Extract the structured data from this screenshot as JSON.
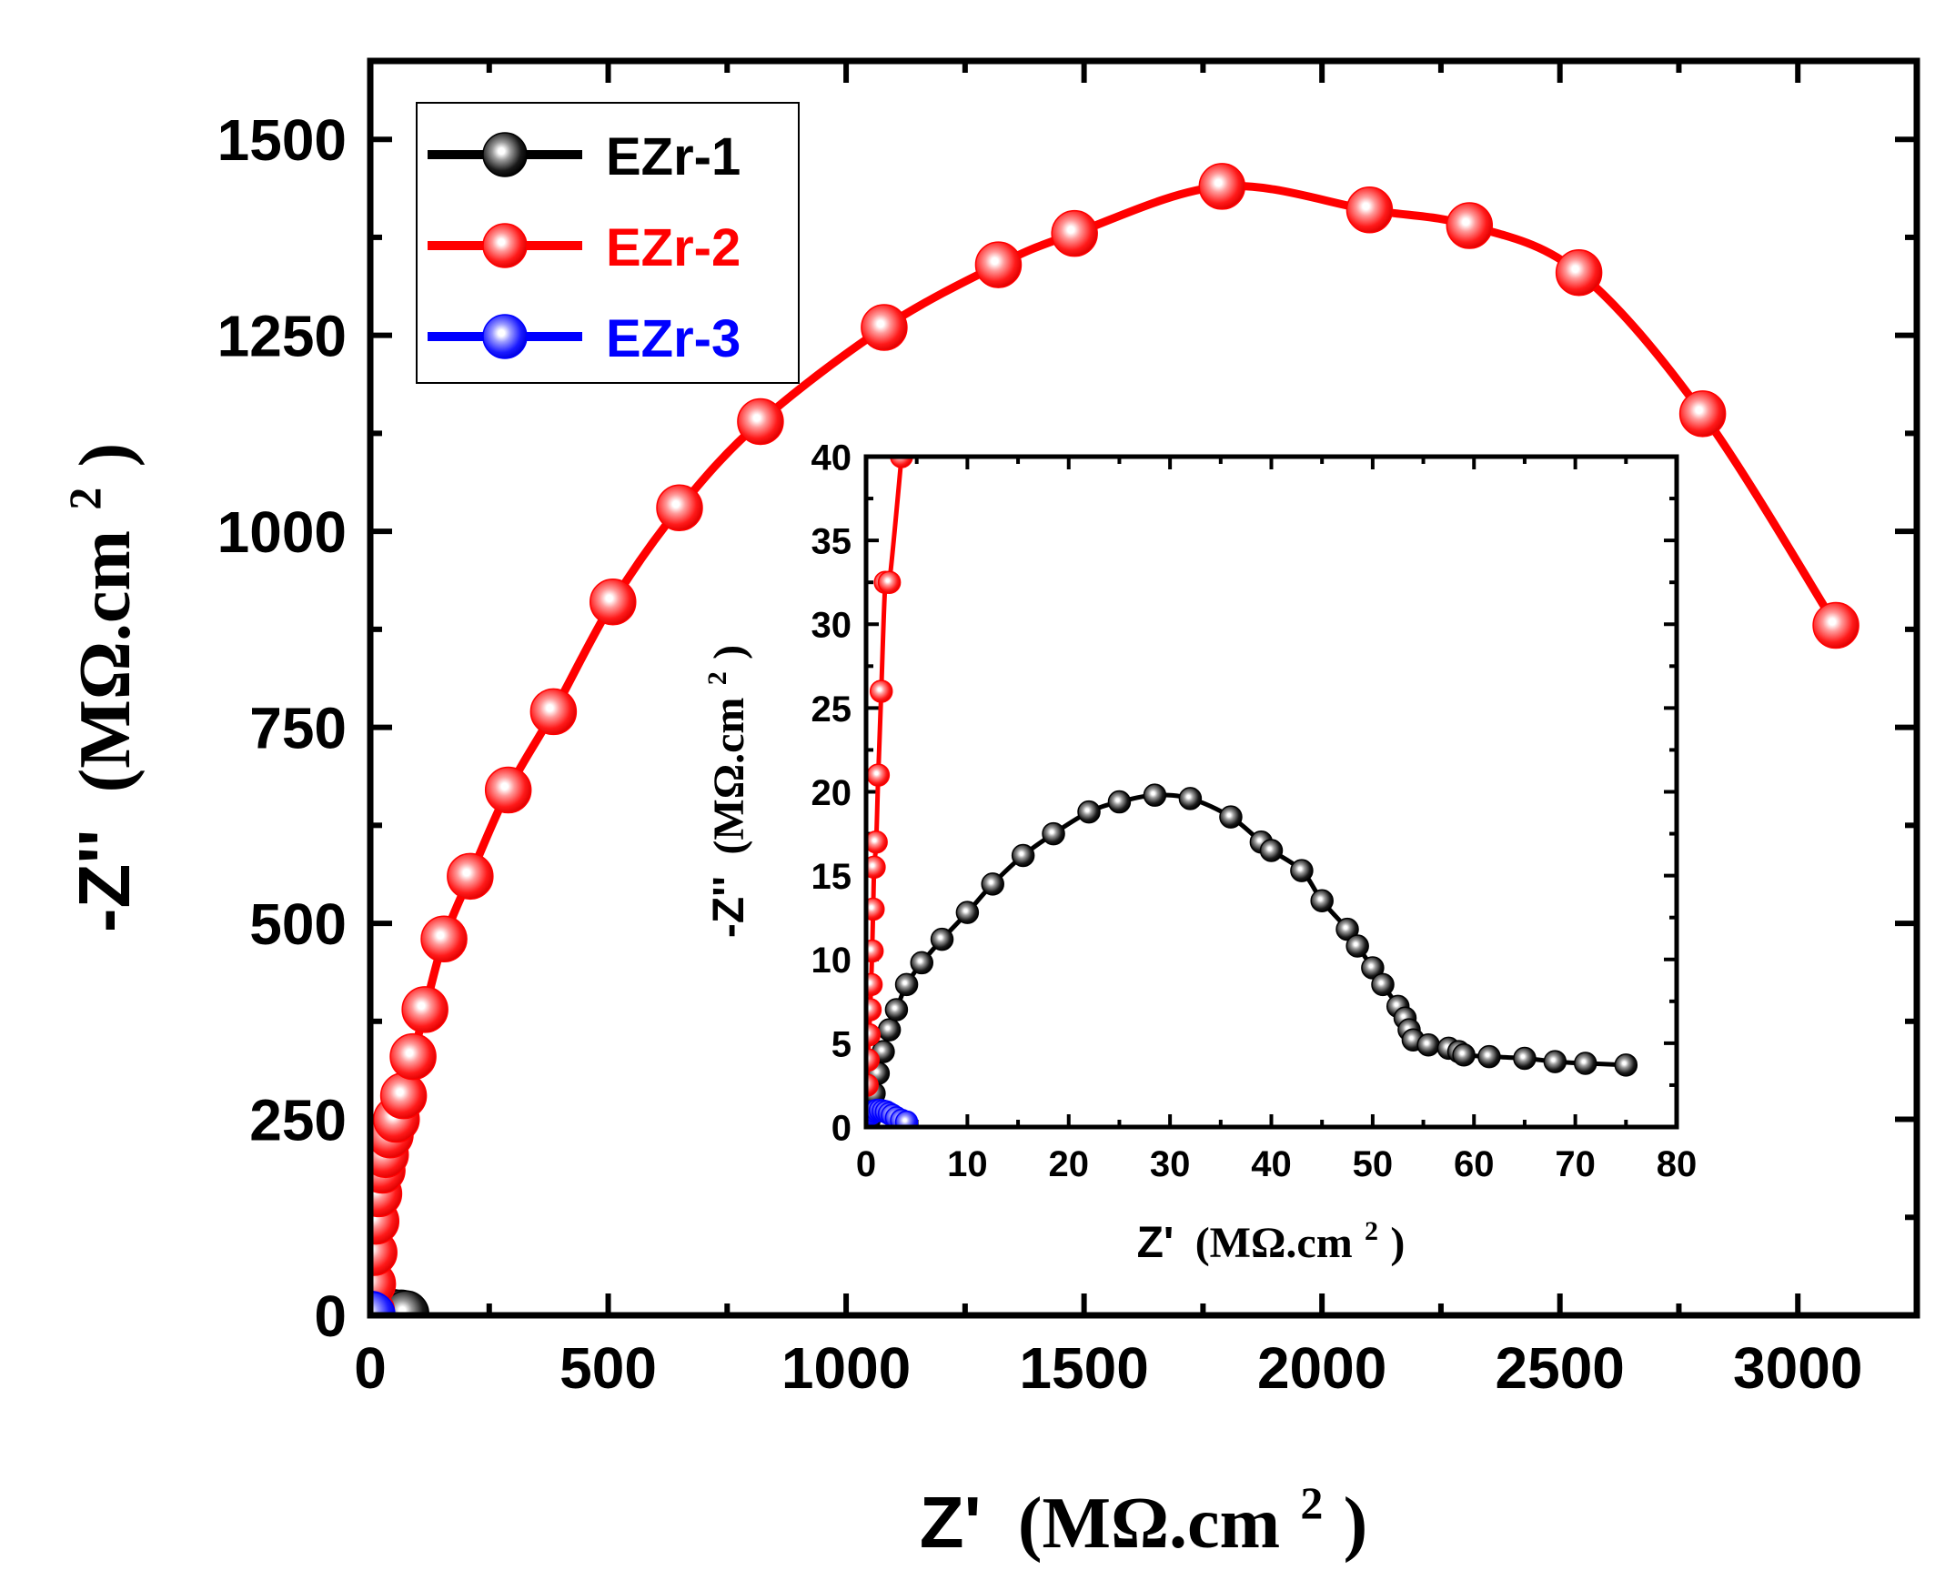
{
  "chart_data": [
    {
      "id": "main",
      "type": "line",
      "xlabel_main": "Z'",
      "ylabel_main": "-Z''",
      "unit_open": "(MΩ.cm",
      "unit_sup": "2",
      "unit_close": ")",
      "xlim": [
        0,
        3250
      ],
      "ylim": [
        0,
        1600
      ],
      "xticks": [
        0,
        500,
        1000,
        1500,
        2000,
        2500,
        3000
      ],
      "yticks": [
        0,
        250,
        500,
        750,
        1000,
        1250,
        1500
      ],
      "legend_position": "top-left",
      "series": [
        {
          "name": "EZr-1",
          "color": "#000000",
          "x": [
            5,
            20,
            45,
            65,
            75
          ],
          "y": [
            2,
            5,
            4,
            3,
            2
          ]
        },
        {
          "name": "EZr-2",
          "color": "#ff0000",
          "x": [
            3,
            5,
            8,
            12,
            18,
            25,
            32,
            42,
            55,
            70,
            90,
            115,
            155,
            210,
            290,
            385,
            510,
            650,
            820,
            1080,
            1320,
            1480,
            1790,
            2100,
            2310,
            2540,
            2800,
            3080
          ],
          "y": [
            5,
            40,
            80,
            120,
            155,
            185,
            205,
            230,
            250,
            280,
            330,
            390,
            480,
            560,
            670,
            770,
            910,
            1030,
            1140,
            1260,
            1340,
            1380,
            1440,
            1410,
            1390,
            1330,
            1150,
            880
          ]
        },
        {
          "name": "EZr-3",
          "color": "#0000ff",
          "x": [
            1,
            2,
            3,
            4
          ],
          "y": [
            1,
            1.5,
            1,
            0.5
          ]
        }
      ]
    },
    {
      "id": "inset",
      "type": "line",
      "xlabel_main": "Z'",
      "ylabel_main": "-Z''",
      "unit_open": "(MΩ.cm",
      "unit_sup": "2",
      "unit_close": ")",
      "xlim": [
        0,
        80
      ],
      "ylim": [
        0,
        40
      ],
      "xticks": [
        0,
        10,
        20,
        30,
        40,
        50,
        60,
        70,
        80
      ],
      "yticks": [
        0,
        5,
        10,
        15,
        20,
        25,
        30,
        35,
        40
      ],
      "series": [
        {
          "name": "EZr-1",
          "color": "#000000",
          "x": [
            0.3,
            0.5,
            0.8,
            1.2,
            1.7,
            2.3,
            3,
            4,
            5.5,
            7.5,
            10,
            12.5,
            15.5,
            18.5,
            22,
            25,
            28.5,
            32,
            36,
            39,
            40,
            43,
            45,
            47.5,
            48.5,
            50,
            51,
            52.5,
            53.2,
            53.6,
            54,
            55.5,
            57.5,
            58.5,
            59,
            61.5,
            65,
            68,
            71,
            75
          ],
          "y": [
            0.4,
            1,
            2,
            3.2,
            4.5,
            5.8,
            7,
            8.5,
            9.8,
            11.2,
            12.8,
            14.5,
            16.2,
            17.5,
            18.8,
            19.4,
            19.8,
            19.6,
            18.5,
            17,
            16.5,
            15.3,
            13.5,
            11.8,
            10.8,
            9.5,
            8.5,
            7.2,
            6.5,
            5.8,
            5.2,
            4.9,
            4.7,
            4.5,
            4.3,
            4.2,
            4.1,
            3.9,
            3.8,
            3.7
          ]
        },
        {
          "name": "EZr-2",
          "color": "#ff0000",
          "x": [
            0.1,
            0.2,
            0.3,
            0.4,
            0.5,
            0.6,
            0.7,
            0.8,
            1.0,
            1.2,
            1.5,
            1.9,
            2.3,
            3.5
          ],
          "y": [
            2.5,
            4,
            5.5,
            7,
            8.5,
            10.5,
            13,
            15.5,
            17,
            21,
            26,
            32.5,
            32.5,
            40
          ]
        },
        {
          "name": "EZr-3",
          "color": "#0000ff",
          "x": [
            0.5,
            0.8,
            1.1,
            1.4,
            1.7,
            2.0,
            2.3,
            2.6,
            3.0,
            3.5,
            4.0
          ],
          "y": [
            0.8,
            0.95,
            1.0,
            1.0,
            0.95,
            0.9,
            0.8,
            0.7,
            0.55,
            0.4,
            0.3
          ]
        }
      ]
    }
  ]
}
